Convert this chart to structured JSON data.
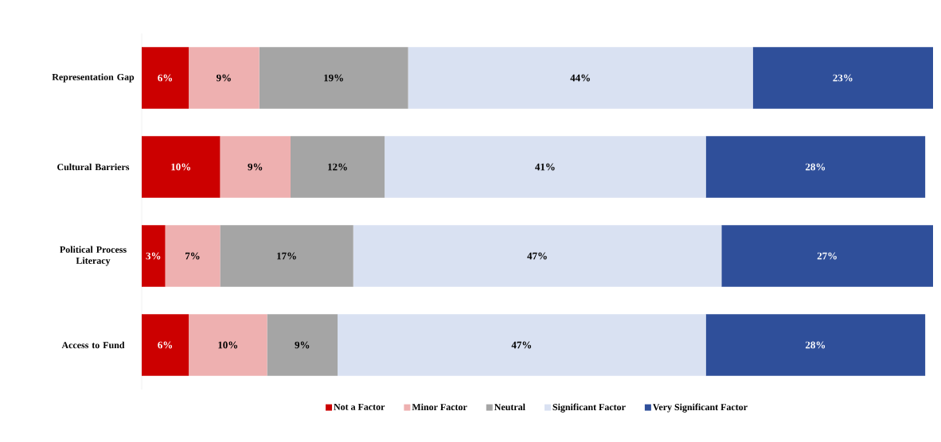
{
  "chart_data": {
    "type": "bar",
    "orientation": "horizontal",
    "stacked": true,
    "legend": "bottom",
    "categories": [
      "Representation Gap",
      "Cultural Barriers",
      "Political Process Literacy",
      "Access to Fund"
    ],
    "series": [
      {
        "name": "Not a Factor",
        "color": "#cc0000",
        "values": [
          6,
          10,
          3,
          6
        ],
        "value_labels": [
          "6%",
          "10%",
          "3%",
          "6%"
        ]
      },
      {
        "name": "Minor Factor",
        "color": "#eeb0b0",
        "values": [
          9,
          9,
          7,
          10
        ],
        "value_labels": [
          "9%",
          "9%",
          "7%",
          "10%"
        ]
      },
      {
        "name": "Neutral",
        "color": "#a5a5a5",
        "values": [
          19,
          12,
          17,
          9
        ],
        "value_labels": [
          "19%",
          "12%",
          "17%",
          "9%"
        ]
      },
      {
        "name": "Significant Factor",
        "color": "#d9e1f2",
        "values": [
          44,
          41,
          47,
          47
        ],
        "value_labels": [
          "44%",
          "41%",
          "47%",
          "47%"
        ]
      },
      {
        "name": "Very Significant Factor",
        "color": "#2f4f9a",
        "values": [
          23,
          28,
          27,
          28
        ],
        "value_labels": [
          "23%",
          "28%",
          "27%",
          "28%"
        ]
      }
    ]
  }
}
